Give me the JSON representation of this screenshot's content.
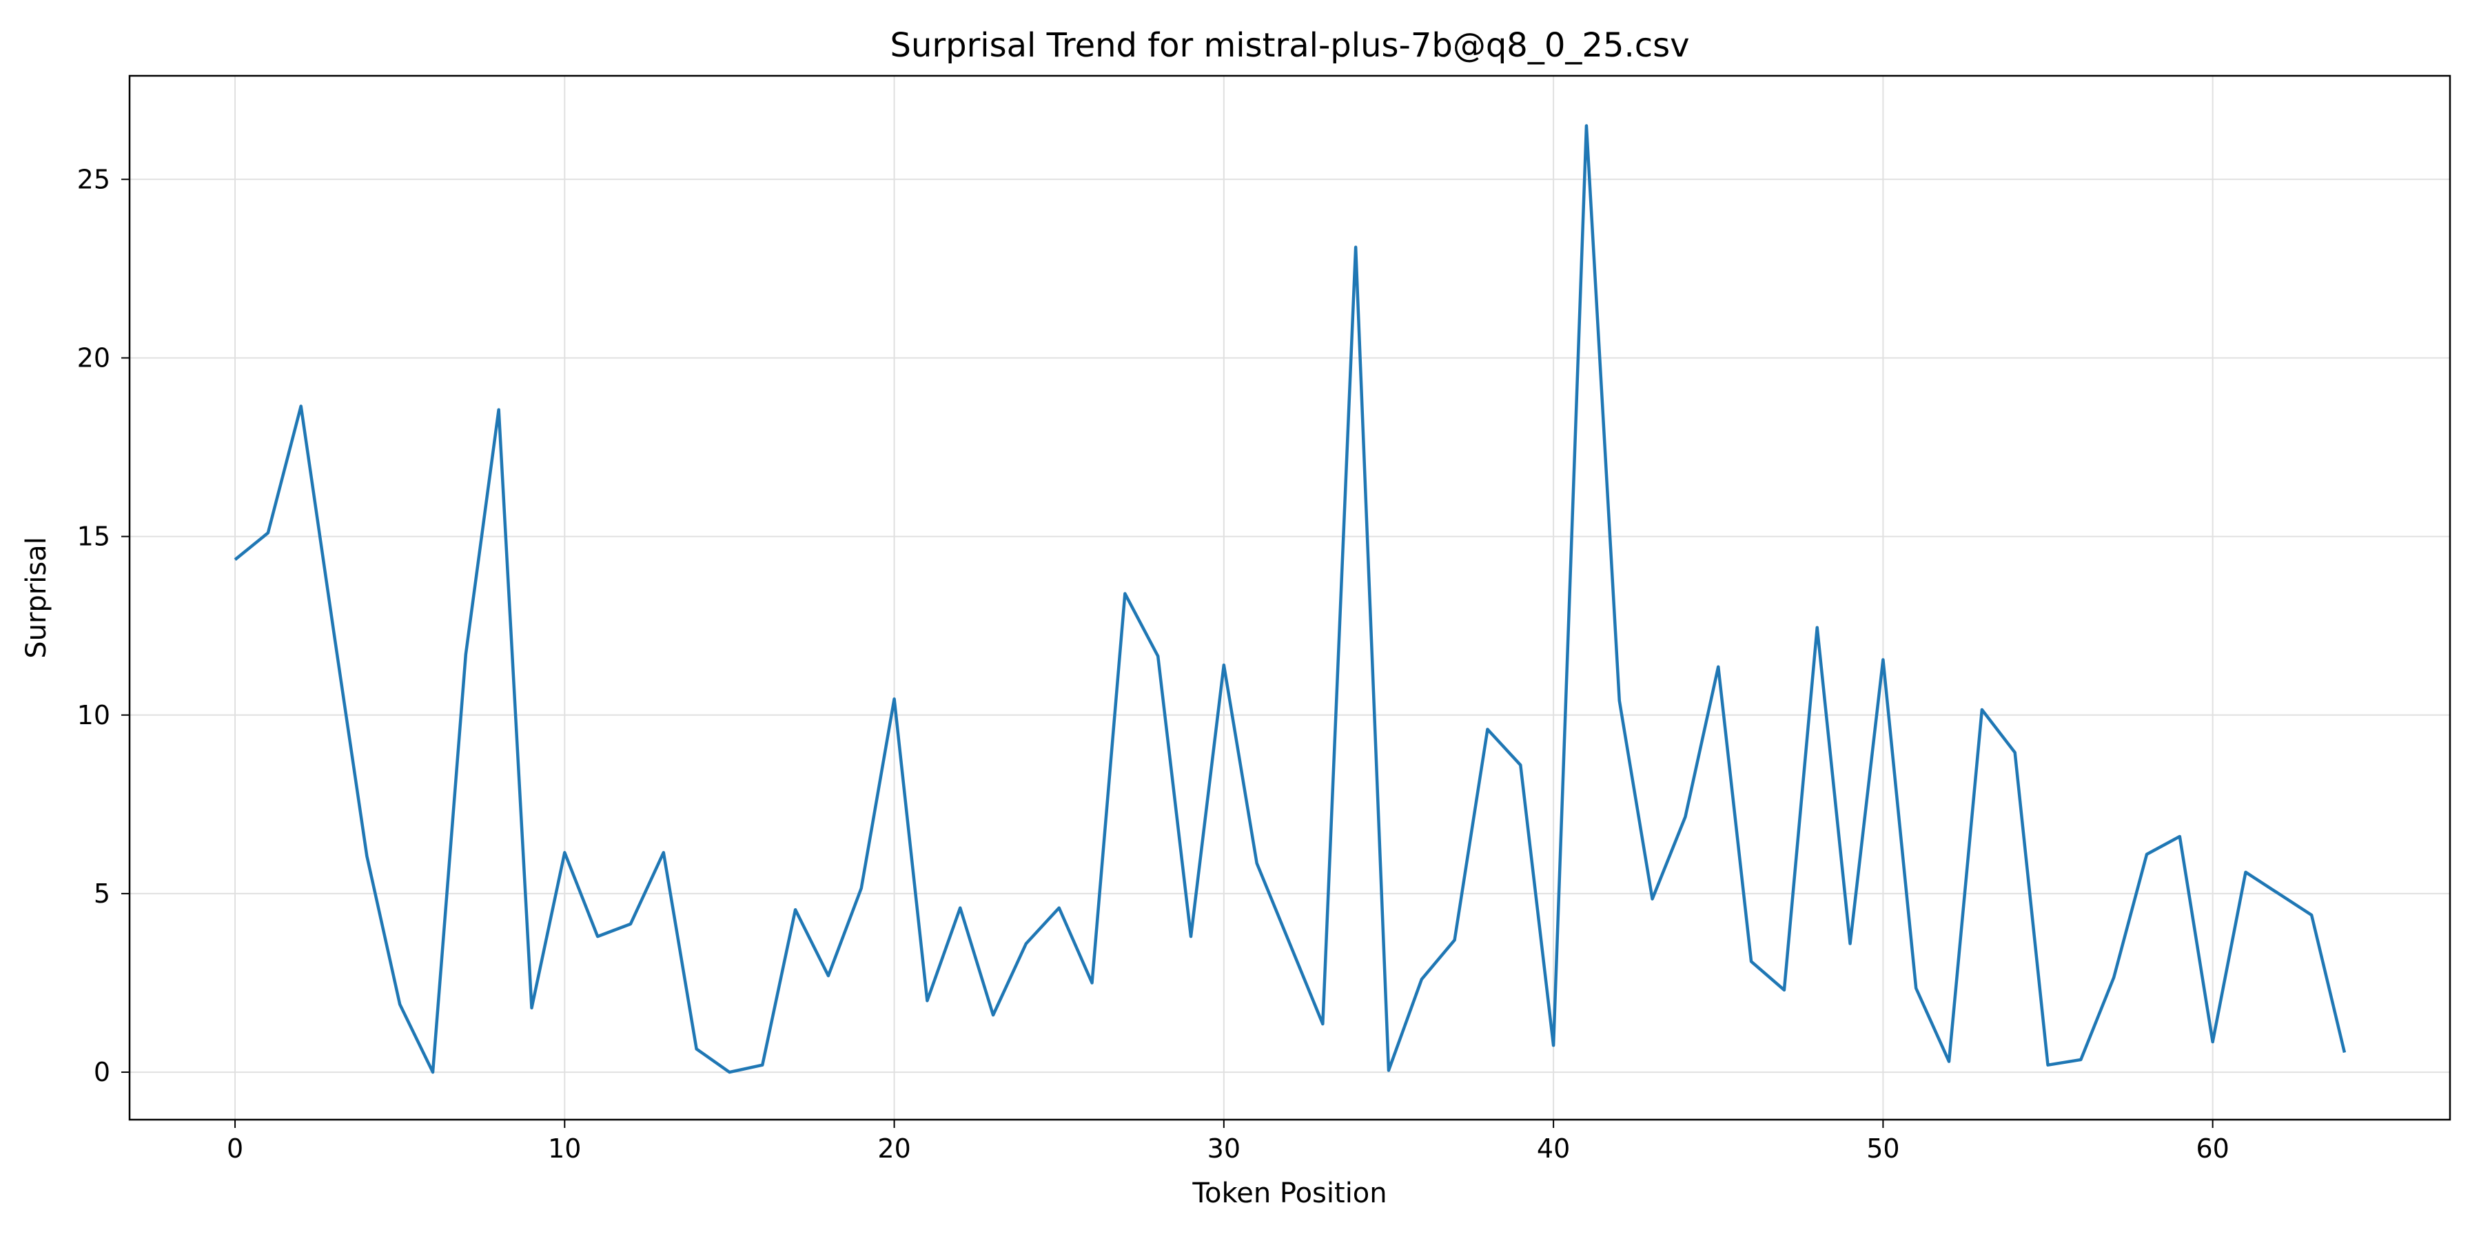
{
  "chart_data": {
    "type": "line",
    "title": "Surprisal Trend for mistral-plus-7b@q8_0_25.csv",
    "xlabel": "Token Position",
    "ylabel": "Surprisal",
    "xlim": [
      -3.2,
      67.2
    ],
    "ylim": [
      -1.33,
      27.9
    ],
    "xticks": [
      0,
      10,
      20,
      30,
      40,
      50,
      60
    ],
    "yticks": [
      0,
      5,
      10,
      15,
      20,
      25
    ],
    "grid": true,
    "series": [
      {
        "color": "#1f77b4",
        "x": [
          0,
          1,
          2,
          3,
          4,
          5,
          6,
          7,
          8,
          9,
          10,
          11,
          12,
          13,
          14,
          15,
          16,
          17,
          18,
          19,
          20,
          21,
          22,
          23,
          24,
          25,
          26,
          27,
          28,
          29,
          30,
          31,
          32,
          33,
          34,
          35,
          36,
          37,
          38,
          39,
          40,
          41,
          42,
          43,
          44,
          45,
          46,
          47,
          48,
          49,
          50,
          51,
          52,
          53,
          54,
          55,
          56,
          57,
          58,
          59,
          60,
          61,
          62,
          63,
          64
        ],
        "y": [
          14.35,
          15.1,
          18.65,
          12.3,
          6.05,
          1.9,
          0.0,
          11.7,
          18.55,
          1.8,
          6.15,
          3.8,
          4.15,
          6.15,
          0.65,
          0.0,
          0.2,
          4.55,
          2.7,
          5.15,
          10.45,
          2.0,
          4.6,
          1.6,
          3.6,
          4.6,
          2.5,
          13.4,
          11.65,
          3.8,
          11.4,
          5.85,
          3.6,
          1.35,
          23.1,
          0.05,
          2.6,
          3.7,
          9.6,
          8.6,
          0.75,
          26.5,
          10.4,
          4.85,
          7.15,
          11.35,
          3.1,
          2.3,
          12.45,
          3.6,
          11.55,
          2.35,
          0.3,
          10.15,
          8.95,
          0.2,
          0.35,
          2.65,
          6.1,
          6.6,
          0.85,
          5.6,
          5.0,
          4.4,
          0.55
        ]
      }
    ]
  }
}
